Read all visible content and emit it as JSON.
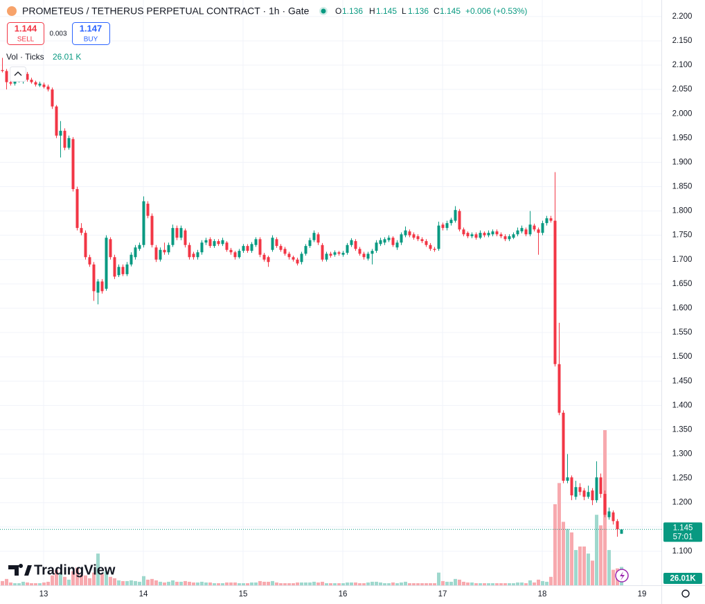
{
  "chart_data": {
    "type": "candlestick",
    "title": "PROMETEUS / TETHERUS PERPETUAL CONTRACT · 1h · Gate",
    "ohlc_legend": {
      "labels": [
        "O",
        "H",
        "L",
        "C"
      ],
      "values": [
        1.136,
        1.145,
        1.136,
        1.145
      ],
      "change": "+0.006 (+0.53%)"
    },
    "sell": {
      "price": 1.144,
      "label": "SELL"
    },
    "spread": 0.003,
    "buy": {
      "price": 1.147,
      "label": "BUY"
    },
    "volume_legend": "Vol · Ticks",
    "volume_label": "26.01 K",
    "volume_badge": "26.01K",
    "last_price": {
      "value": 1.145,
      "countdown": "57:01"
    },
    "logo": "TradingView",
    "up_color": "#089981",
    "down_color": "#f23645",
    "volume_up_color": "#9fd8cd",
    "volume_down_color": "#f7a9ae",
    "grid": true,
    "xlim": [
      12.5625,
      19.194
    ],
    "xticks": [
      13,
      14,
      15,
      16,
      17,
      18,
      19
    ],
    "ylim": [
      1.03,
      2.234
    ],
    "yticks": [
      {
        "value": 1.1,
        "label": "1.100"
      },
      {
        "value": 1.15,
        "label": "1.150"
      },
      {
        "value": 1.2,
        "label": "1.200"
      },
      {
        "value": 1.25,
        "label": "1.250"
      },
      {
        "value": 1.3,
        "label": "1.300"
      },
      {
        "value": 1.35,
        "label": "1.350"
      },
      {
        "value": 1.4,
        "label": "1.400"
      },
      {
        "value": 1.45,
        "label": "1.450"
      },
      {
        "value": 1.5,
        "label": "1.500"
      },
      {
        "value": 1.55,
        "label": "1.550"
      },
      {
        "value": 1.6,
        "label": "1.600"
      },
      {
        "value": 1.65,
        "label": "1.650"
      },
      {
        "value": 1.7,
        "label": "1.700"
      },
      {
        "value": 1.75,
        "label": "1.750"
      },
      {
        "value": 1.8,
        "label": "1.800"
      },
      {
        "value": 1.85,
        "label": "1.850"
      },
      {
        "value": 1.9,
        "label": "1.900"
      },
      {
        "value": 1.95,
        "label": "1.950"
      },
      {
        "value": 2.0,
        "label": "2.000"
      },
      {
        "value": 2.05,
        "label": "2.050"
      },
      {
        "value": 2.1,
        "label": "2.100"
      },
      {
        "value": 2.15,
        "label": "2.150"
      },
      {
        "value": 2.2,
        "label": "2.200"
      }
    ],
    "y2lim": [
      0,
      830000
    ],
    "x": [
      12.583,
      12.625,
      12.667,
      12.708,
      12.75,
      12.792,
      12.833,
      12.875,
      12.917,
      12.958,
      13,
      13.042,
      13.083,
      13.125,
      13.167,
      13.208,
      13.25,
      13.292,
      13.333,
      13.375,
      13.417,
      13.458,
      13.5,
      13.542,
      13.583,
      13.625,
      13.667,
      13.708,
      13.75,
      13.792,
      13.833,
      13.875,
      13.917,
      13.958,
      14,
      14.042,
      14.083,
      14.125,
      14.167,
      14.208,
      14.25,
      14.292,
      14.333,
      14.375,
      14.417,
      14.458,
      14.5,
      14.542,
      14.583,
      14.625,
      14.667,
      14.708,
      14.75,
      14.792,
      14.833,
      14.875,
      14.917,
      14.958,
      15,
      15.042,
      15.083,
      15.125,
      15.167,
      15.208,
      15.25,
      15.292,
      15.333,
      15.375,
      15.417,
      15.458,
      15.5,
      15.542,
      15.583,
      15.625,
      15.667,
      15.708,
      15.75,
      15.792,
      15.833,
      15.875,
      15.917,
      15.958,
      16,
      16.042,
      16.083,
      16.125,
      16.167,
      16.208,
      16.25,
      16.292,
      16.333,
      16.375,
      16.417,
      16.458,
      16.5,
      16.542,
      16.583,
      16.625,
      16.667,
      16.708,
      16.75,
      16.792,
      16.833,
      16.875,
      16.917,
      16.958,
      17,
      17.042,
      17.083,
      17.125,
      17.167,
      17.208,
      17.25,
      17.292,
      17.333,
      17.375,
      17.417,
      17.458,
      17.5,
      17.542,
      17.583,
      17.625,
      17.667,
      17.708,
      17.75,
      17.792,
      17.833,
      17.875,
      17.917,
      17.958,
      18,
      18.042,
      18.083,
      18.125,
      18.167,
      18.208,
      18.25,
      18.292,
      18.333,
      18.375,
      18.417,
      18.458,
      18.5,
      18.542,
      18.583,
      18.625,
      18.667,
      18.708,
      18.75,
      18.792
    ],
    "open": [
      2.09,
      2.088,
      2.065,
      2.062,
      2.068,
      2.066,
      2.082,
      2.07,
      2.065,
      2.058,
      2.06,
      2.056,
      2.05,
      2.015,
      1.955,
      1.965,
      1.93,
      1.948,
      1.845,
      1.765,
      1.755,
      1.705,
      1.69,
      1.632,
      1.655,
      1.64,
      1.742,
      1.705,
      1.668,
      1.685,
      1.67,
      1.69,
      1.705,
      1.722,
      1.73,
      1.815,
      1.79,
      1.725,
      1.7,
      1.72,
      1.715,
      1.73,
      1.765,
      1.745,
      1.76,
      1.73,
      1.712,
      1.705,
      1.715,
      1.735,
      1.742,
      1.728,
      1.738,
      1.732,
      1.735,
      1.72,
      1.715,
      1.705,
      1.718,
      1.728,
      1.718,
      1.73,
      1.742,
      1.71,
      1.705,
      1.72,
      1.742,
      1.728,
      1.722,
      1.712,
      1.705,
      1.7,
      1.695,
      1.712,
      1.728,
      1.74,
      1.752,
      1.73,
      1.7,
      1.712,
      1.71,
      1.715,
      1.71,
      1.714,
      1.73,
      1.738,
      1.722,
      1.712,
      1.702,
      1.712,
      1.718,
      1.732,
      1.735,
      1.74,
      1.745,
      1.725,
      1.735,
      1.75,
      1.758,
      1.752,
      1.748,
      1.742,
      1.738,
      1.73,
      1.722,
      1.722,
      1.772,
      1.765,
      1.775,
      1.78,
      1.8,
      1.762,
      1.755,
      1.748,
      1.752,
      1.745,
      1.755,
      1.75,
      1.752,
      1.758,
      1.752,
      1.748,
      1.742,
      1.745,
      1.752,
      1.758,
      1.762,
      1.752,
      1.77,
      1.762,
      1.755,
      1.775,
      1.785,
      1.78,
      1.485,
      1.385,
      1.245,
      1.252,
      1.212,
      1.232,
      1.225,
      1.212,
      1.225,
      1.205,
      1.252,
      1.218,
      1.17,
      1.18,
      1.162,
      1.136
    ],
    "high": [
      2.115,
      2.092,
      2.07,
      2.07,
      2.075,
      2.09,
      2.086,
      2.074,
      2.068,
      2.066,
      2.064,
      2.06,
      2.054,
      2.018,
      1.985,
      1.97,
      1.955,
      1.952,
      1.85,
      1.775,
      1.76,
      1.71,
      1.695,
      1.66,
      1.66,
      1.75,
      1.746,
      1.71,
      1.69,
      1.69,
      1.695,
      1.715,
      1.73,
      1.735,
      1.83,
      1.82,
      1.795,
      1.73,
      1.725,
      1.735,
      1.735,
      1.772,
      1.77,
      1.77,
      1.764,
      1.735,
      1.716,
      1.72,
      1.74,
      1.745,
      1.746,
      1.742,
      1.742,
      1.745,
      1.738,
      1.724,
      1.718,
      1.722,
      1.732,
      1.732,
      1.736,
      1.746,
      1.746,
      1.714,
      1.708,
      1.75,
      1.746,
      1.732,
      1.726,
      1.716,
      1.708,
      1.704,
      1.716,
      1.732,
      1.745,
      1.76,
      1.756,
      1.734,
      1.716,
      1.716,
      1.719,
      1.718,
      1.718,
      1.734,
      1.744,
      1.742,
      1.726,
      1.716,
      1.716,
      1.722,
      1.74,
      1.745,
      1.746,
      1.75,
      1.748,
      1.74,
      1.756,
      1.768,
      1.762,
      1.756,
      1.752,
      1.746,
      1.742,
      1.734,
      1.726,
      1.778,
      1.776,
      1.78,
      1.786,
      1.81,
      1.804,
      1.766,
      1.758,
      1.756,
      1.756,
      1.76,
      1.758,
      1.76,
      1.762,
      1.762,
      1.756,
      1.752,
      1.752,
      1.756,
      1.766,
      1.77,
      1.766,
      1.8,
      1.774,
      1.766,
      1.78,
      1.79,
      1.79,
      1.88,
      1.57,
      1.39,
      1.3,
      1.256,
      1.245,
      1.24,
      1.23,
      1.235,
      1.23,
      1.285,
      1.26,
      1.225,
      1.19,
      1.184,
      1.166,
      1.145
    ],
    "low": [
      2.085,
      2.05,
      2.058,
      2.058,
      2.064,
      2.062,
      2.066,
      2.062,
      2.056,
      2.055,
      2.052,
      2.046,
      2.01,
      1.95,
      1.91,
      1.925,
      1.926,
      1.84,
      1.76,
      1.75,
      1.7,
      1.685,
      1.615,
      1.608,
      1.63,
      1.636,
      1.7,
      1.66,
      1.664,
      1.666,
      1.666,
      1.686,
      1.7,
      1.718,
      1.725,
      1.785,
      1.725,
      1.695,
      1.696,
      1.71,
      1.71,
      1.726,
      1.74,
      1.74,
      1.725,
      1.7,
      1.7,
      1.7,
      1.71,
      1.73,
      1.724,
      1.724,
      1.728,
      1.728,
      1.716,
      1.71,
      1.7,
      1.702,
      1.714,
      1.714,
      1.714,
      1.726,
      1.705,
      1.696,
      1.685,
      1.716,
      1.724,
      1.716,
      1.708,
      1.7,
      1.696,
      1.688,
      1.69,
      1.708,
      1.724,
      1.736,
      1.73,
      1.696,
      1.696,
      1.704,
      1.706,
      1.708,
      1.706,
      1.71,
      1.726,
      1.718,
      1.708,
      1.7,
      1.698,
      1.69,
      1.714,
      1.728,
      1.73,
      1.736,
      1.726,
      1.72,
      1.73,
      1.746,
      1.746,
      1.741,
      1.738,
      1.734,
      1.726,
      1.718,
      1.716,
      1.718,
      1.76,
      1.76,
      1.77,
      1.776,
      1.758,
      1.748,
      1.744,
      1.744,
      1.741,
      1.742,
      1.746,
      1.746,
      1.748,
      1.748,
      1.744,
      1.738,
      1.738,
      1.742,
      1.748,
      1.754,
      1.748,
      1.748,
      1.758,
      1.71,
      1.75,
      1.77,
      1.776,
      1.48,
      1.38,
      1.24,
      1.24,
      1.205,
      1.206,
      1.215,
      1.205,
      1.208,
      1.195,
      1.2,
      1.21,
      1.17,
      1.165,
      1.155,
      1.13,
      1.136
    ],
    "close": [
      2.088,
      2.065,
      2.062,
      2.068,
      2.072,
      2.085,
      2.07,
      2.065,
      2.06,
      2.062,
      2.055,
      2.05,
      2.015,
      1.955,
      1.965,
      1.93,
      1.95,
      1.845,
      1.765,
      1.755,
      1.705,
      1.69,
      1.635,
      1.655,
      1.635,
      1.745,
      1.705,
      1.665,
      1.685,
      1.67,
      1.69,
      1.71,
      1.725,
      1.73,
      1.82,
      1.79,
      1.73,
      1.7,
      1.72,
      1.715,
      1.73,
      1.765,
      1.745,
      1.765,
      1.73,
      1.705,
      1.705,
      1.715,
      1.735,
      1.74,
      1.728,
      1.738,
      1.732,
      1.74,
      1.72,
      1.715,
      1.705,
      1.718,
      1.728,
      1.718,
      1.732,
      1.742,
      1.71,
      1.7,
      1.695,
      1.745,
      1.728,
      1.72,
      1.712,
      1.705,
      1.7,
      1.692,
      1.712,
      1.728,
      1.74,
      1.755,
      1.735,
      1.7,
      1.712,
      1.708,
      1.715,
      1.712,
      1.714,
      1.73,
      1.74,
      1.722,
      1.712,
      1.705,
      1.712,
      1.718,
      1.735,
      1.74,
      1.742,
      1.745,
      1.73,
      1.735,
      1.752,
      1.76,
      1.75,
      1.745,
      1.742,
      1.738,
      1.73,
      1.722,
      1.72,
      1.77,
      1.765,
      1.775,
      1.782,
      1.802,
      1.762,
      1.752,
      1.748,
      1.752,
      1.745,
      1.755,
      1.75,
      1.755,
      1.758,
      1.752,
      1.748,
      1.742,
      1.748,
      1.752,
      1.76,
      1.765,
      1.752,
      1.772,
      1.762,
      1.755,
      1.775,
      1.785,
      1.78,
      1.485,
      1.385,
      1.245,
      1.252,
      1.215,
      1.232,
      1.222,
      1.212,
      1.222,
      1.205,
      1.252,
      1.218,
      1.175,
      1.182,
      1.162,
      1.145,
      1.145
    ],
    "volume": [
      6000,
      9000,
      4000,
      3000,
      3000,
      5000,
      4000,
      3000,
      3000,
      3000,
      4000,
      5000,
      14000,
      22000,
      18000,
      12000,
      8000,
      20000,
      25000,
      15000,
      14000,
      10000,
      18000,
      45000,
      16000,
      20000,
      12000,
      10000,
      7000,
      6000,
      6000,
      7000,
      6000,
      5000,
      13000,
      8000,
      9000,
      7000,
      5000,
      4000,
      5000,
      7000,
      5000,
      5000,
      6000,
      5000,
      4000,
      4000,
      5000,
      4000,
      4000,
      3000,
      3000,
      3000,
      4000,
      4000,
      4000,
      3000,
      3000,
      3000,
      4000,
      4000,
      6000,
      5000,
      5000,
      6000,
      4000,
      3000,
      3000,
      3000,
      3000,
      4000,
      4000,
      4000,
      4000,
      5000,
      4000,
      5000,
      3000,
      3000,
      3000,
      3000,
      3000,
      4000,
      4000,
      4000,
      3000,
      3000,
      4000,
      5000,
      5000,
      4000,
      3000,
      3000,
      4000,
      3000,
      4000,
      5000,
      3000,
      3000,
      3000,
      3000,
      3000,
      3000,
      3000,
      18000,
      6000,
      5000,
      5000,
      9000,
      8000,
      5000,
      4000,
      4000,
      3000,
      3000,
      3000,
      3000,
      3000,
      3000,
      3000,
      3000,
      3000,
      3000,
      4000,
      4000,
      3000,
      7000,
      4000,
      8000,
      6000,
      5000,
      12000,
      115000,
      145000,
      90000,
      80000,
      75000,
      50000,
      55000,
      55000,
      45000,
      35000,
      100000,
      85000,
      220000,
      50000,
      22000,
      24000,
      26010
    ]
  }
}
